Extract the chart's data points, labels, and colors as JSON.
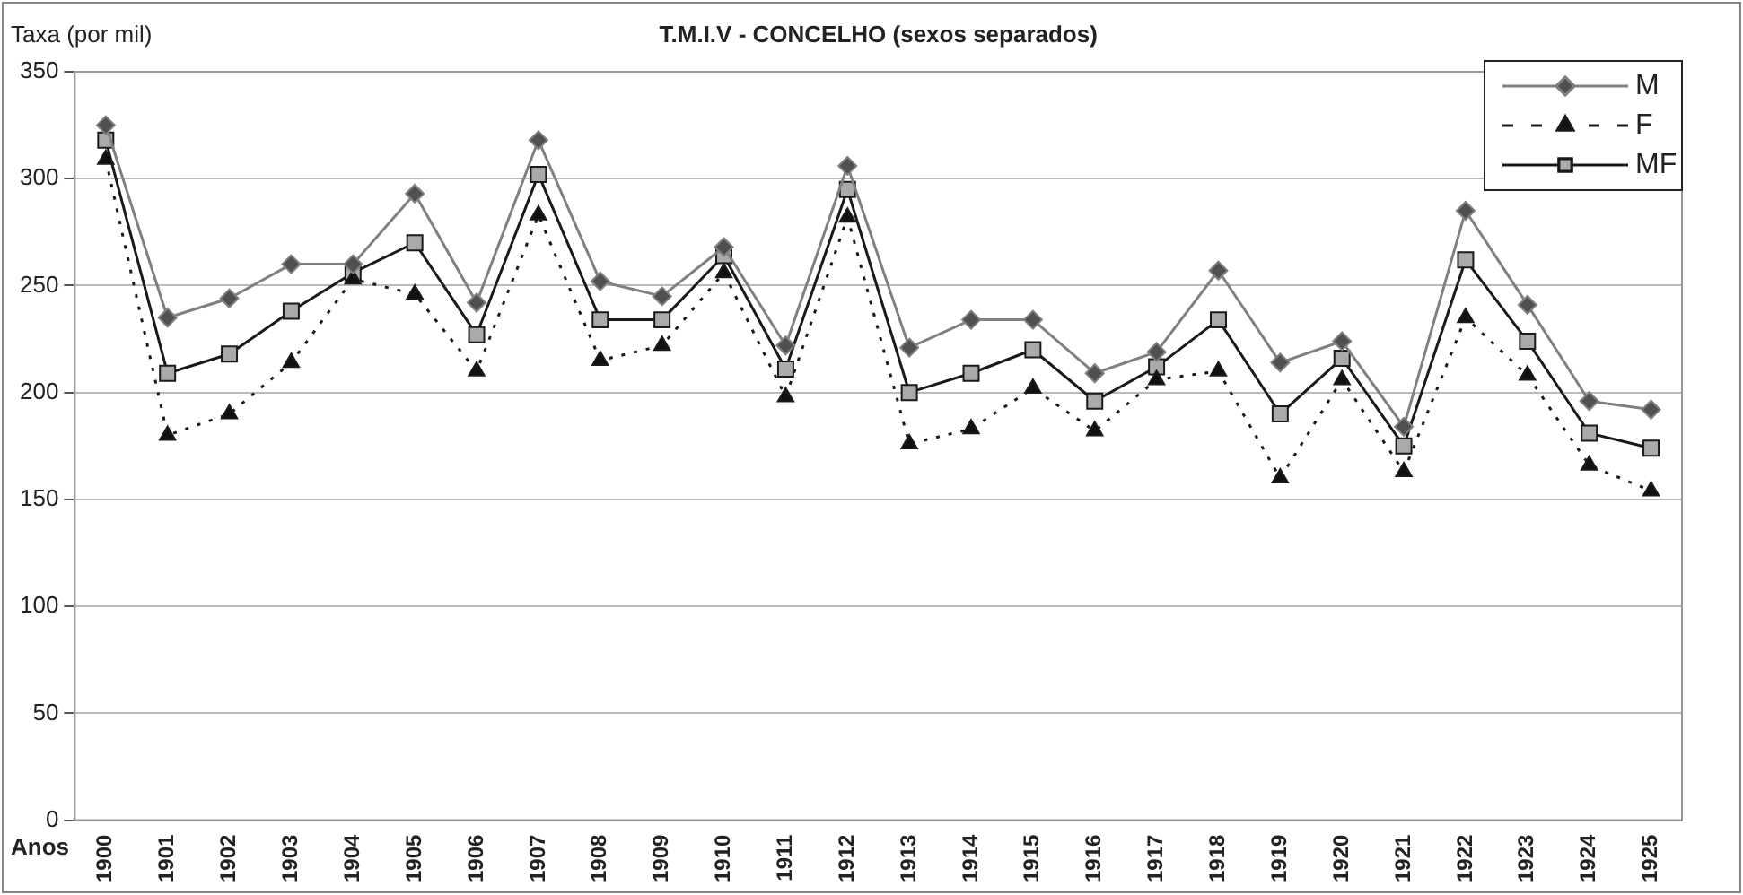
{
  "chart_data": {
    "type": "line",
    "title": "T.M.I.V - CONCELHO (sexos separados)",
    "ylabel": "Taxa (por mil)",
    "xlabel": "Anos",
    "categories": [
      "1900",
      "1901",
      "1902",
      "1903",
      "1904",
      "1905",
      "1906",
      "1907",
      "1908",
      "1909",
      "1910",
      "1911",
      "1912",
      "1913",
      "1914",
      "1915",
      "1916",
      "1917",
      "1918",
      "1919",
      "1920",
      "1921",
      "1922",
      "1923",
      "1924",
      "1925"
    ],
    "series": [
      {
        "name": "M",
        "color": "#808080",
        "marker": "diamond",
        "line_style": "solid",
        "values": [
          325,
          235,
          244,
          260,
          260,
          293,
          242,
          318,
          252,
          245,
          268,
          222,
          306,
          221,
          234,
          234,
          209,
          219,
          257,
          214,
          224,
          184,
          285,
          241,
          196,
          192
        ]
      },
      {
        "name": "F",
        "color": "#1a1a1a",
        "marker": "triangle",
        "line_style": "dotted",
        "values": [
          309,
          180,
          190,
          214,
          253,
          246,
          210,
          283,
          215,
          222,
          256,
          198,
          282,
          176,
          183,
          202,
          182,
          206,
          210,
          160,
          206,
          163,
          235,
          208,
          166,
          154
        ]
      },
      {
        "name": "MF",
        "color": "#1a1a1a",
        "marker": "square",
        "line_style": "solid",
        "values": [
          318,
          209,
          218,
          238,
          256,
          270,
          227,
          302,
          234,
          234,
          264,
          211,
          295,
          200,
          209,
          220,
          196,
          212,
          234,
          190,
          216,
          175,
          262,
          224,
          181,
          174
        ]
      }
    ],
    "ylim": [
      0,
      350
    ],
    "yticks": [
      0,
      50,
      100,
      150,
      200,
      250,
      300,
      350
    ],
    "grid": "y",
    "legend": "top right"
  }
}
